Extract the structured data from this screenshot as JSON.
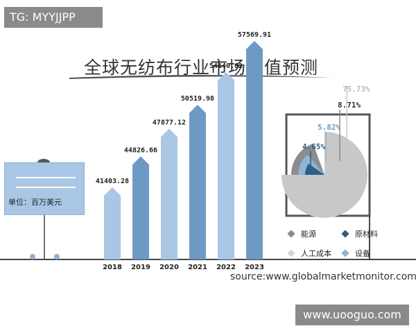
{
  "tag": "TG: MYYJJPP",
  "watermark": "www.uooguo.com",
  "unit": "单位：百万美元",
  "source": "source:www.globalmarketmonitor.com",
  "colors": {
    "bar_dark": "#6e99c4",
    "bar_light": "#a9c6e4",
    "pie_gray": "#c8c8c8",
    "pie_dark_gray": "#8c8c8c",
    "pie_navy": "#2e5f86",
    "pie_blue": "#8fb4d8"
  },
  "chart_data": [
    {
      "type": "bar",
      "title": "全球无纺布行业市场价值预测",
      "categories": [
        "2018",
        "2019",
        "2020",
        "2021",
        "2022",
        "2023"
      ],
      "values": [
        41403.28,
        44826.66,
        47877.12,
        50519.98,
        54140.02,
        57569.91
      ],
      "value_labels": [
        "41403.28",
        "44826.66",
        "47877.12",
        "50519.98",
        "54140.02",
        "57569.91"
      ]
    },
    {
      "type": "pie",
      "labels": [
        "能源",
        "原材料",
        "人工成本",
        "设备"
      ],
      "values": [
        8.71,
        4.65,
        75.73,
        5.82
      ],
      "value_labels": [
        "8.71%",
        "4.65%",
        "75.73%",
        "5.82%"
      ],
      "colors": [
        "#8c8c8c",
        "#2e5f86",
        "#c8c8c8",
        "#8fb4d8"
      ]
    }
  ]
}
